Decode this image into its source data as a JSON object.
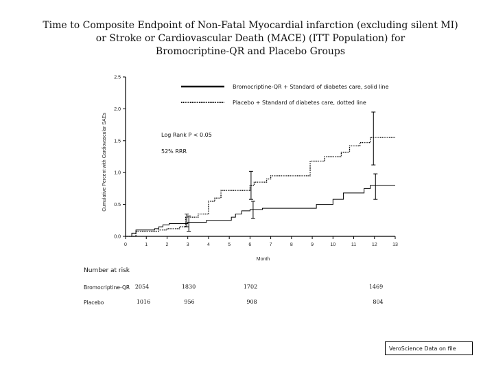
{
  "title_lines": [
    "Time to Composite Endpoint of Non-Fatal Myocardial infarction (excluding silent MI)",
    "or Stroke or Cardiovascular Death (MACE) (ITT Population) for",
    "Bromocriptine-QR and Placebo Groups"
  ],
  "chart_data": {
    "type": "line",
    "title": "",
    "xlabel": "Month",
    "ylabel": "Cumulative Percent with Cardiovascular SAEs",
    "xlim": [
      0,
      13
    ],
    "ylim": [
      0.0,
      2.5
    ],
    "x_ticks": [
      "0",
      "1",
      "2",
      "3",
      "4",
      "5",
      "6",
      "7",
      "8",
      "9",
      "10",
      "11",
      "12",
      "13"
    ],
    "y_ticks": [
      "0.0",
      "0.5",
      "1.0",
      "1.5",
      "2.0",
      "2.5"
    ],
    "grid": false,
    "legend_position": "top-right",
    "series": [
      {
        "name": "Bromocriptine-QR + Standard of diabetes care, solid line",
        "style": "solid",
        "color": "#000000",
        "x": [
          0,
          0.3,
          0.5,
          1.0,
          1.4,
          1.6,
          1.8,
          2.1,
          2.6,
          3.0,
          3.4,
          3.9,
          4.4,
          5.1,
          5.3,
          5.6,
          6.0,
          6.6,
          8.0,
          9.2,
          10.0,
          10.5,
          11.2,
          11.5,
          11.8,
          13.0
        ],
        "y": [
          0.0,
          0.05,
          0.1,
          0.1,
          0.12,
          0.15,
          0.18,
          0.2,
          0.2,
          0.22,
          0.22,
          0.25,
          0.25,
          0.3,
          0.35,
          0.4,
          0.42,
          0.44,
          0.44,
          0.5,
          0.58,
          0.68,
          0.68,
          0.75,
          0.8,
          0.8
        ]
      },
      {
        "name": "Placebo + Standard of diabetes care, dotted line",
        "style": "dotted",
        "color": "#000000",
        "x": [
          0,
          0.5,
          1.6,
          2.0,
          2.6,
          2.9,
          3.5,
          4.0,
          4.3,
          4.6,
          5.2,
          5.7,
          6.0,
          6.2,
          6.8,
          7.0,
          8.0,
          8.9,
          9.6,
          10.4,
          10.8,
          11.3,
          11.8,
          13.0
        ],
        "y": [
          0.0,
          0.08,
          0.1,
          0.12,
          0.15,
          0.3,
          0.35,
          0.55,
          0.6,
          0.72,
          0.72,
          0.72,
          0.8,
          0.85,
          0.9,
          0.95,
          0.95,
          1.18,
          1.25,
          1.32,
          1.42,
          1.47,
          1.55,
          1.55
        ]
      }
    ],
    "error_bars": [
      {
        "series": "Placebo + Standard of diabetes care, dotted line",
        "x": 3.0,
        "low": 0.15,
        "high": 0.35
      },
      {
        "series": "Placebo + Standard of diabetes care, dotted line",
        "x": 6.1,
        "low": 0.58,
        "high": 1.02
      },
      {
        "series": "Placebo + Standard of diabetes care, dotted line",
        "x": 12.0,
        "low": 1.12,
        "high": 1.95
      },
      {
        "series": "Bromocriptine-QR + Standard of diabetes care, solid line",
        "x": 3.0,
        "low": 0.08,
        "high": 0.32
      },
      {
        "series": "Bromocriptine-QR + Standard of diabetes care, solid line",
        "x": 6.1,
        "low": 0.28,
        "high": 0.55
      },
      {
        "series": "Bromocriptine-QR + Standard of diabetes care, solid line",
        "x": 12.0,
        "low": 0.58,
        "high": 0.98
      }
    ],
    "annotations": [
      "Log Rank P < 0.05",
      "52% RRR"
    ]
  },
  "risk_table": {
    "heading": "Number at risk",
    "rows": [
      {
        "label": "Bromocriptine-QR",
        "values": [
          "2054",
          "1830",
          "1702",
          "1469"
        ]
      },
      {
        "label": "Placebo",
        "values": [
          "1016",
          "956",
          "908",
          "804"
        ]
      }
    ]
  },
  "footer": "VeroScience Data on file"
}
